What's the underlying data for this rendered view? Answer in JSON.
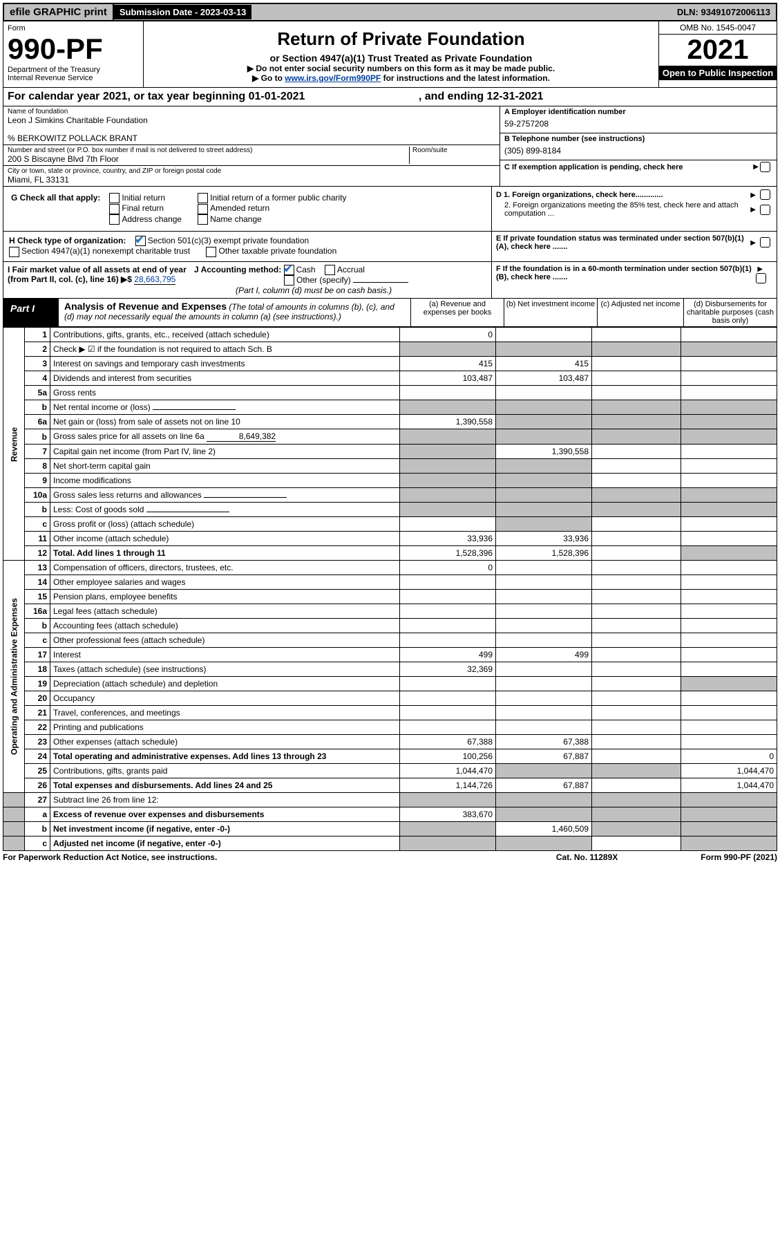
{
  "topbar": {
    "efile": "efile GRAPHIC print",
    "submission_label": "Submission Date - 2023-03-13",
    "dln": "DLN: 93491072006113"
  },
  "header": {
    "form_label": "Form",
    "form_no": "990-PF",
    "dept": "Department of the Treasury",
    "irs": "Internal Revenue Service",
    "title": "Return of Private Foundation",
    "subtitle": "or Section 4947(a)(1) Trust Treated as Private Foundation",
    "note1": "▶ Do not enter social security numbers on this form as it may be made public.",
    "note2_prefix": "▶ Go to ",
    "note2_link": "www.irs.gov/Form990PF",
    "note2_suffix": " for instructions and the latest information.",
    "omb": "OMB No. 1545-0047",
    "year": "2021",
    "open": "Open to Public Inspection"
  },
  "calyear": {
    "text": "For calendar year 2021, or tax year beginning 01-01-2021",
    "mid": ", and ending 12-31-2021"
  },
  "id": {
    "name_label": "Name of foundation",
    "name": "Leon J Simkins Charitable Foundation",
    "care_of": "% BERKOWITZ POLLACK BRANT",
    "addr_label": "Number and street (or P.O. box number if mail is not delivered to street address)",
    "addr": "200 S Biscayne Blvd 7th Floor",
    "room_label": "Room/suite",
    "city_label": "City or town, state or province, country, and ZIP or foreign postal code",
    "city": "Miami, FL  33131",
    "a_label": "A Employer identification number",
    "a_val": "59-2757208",
    "b_label": "B Telephone number (see instructions)",
    "b_val": "(305) 899-8184",
    "c_label": "C If exemption application is pending, check here"
  },
  "g": {
    "label": "G Check all that apply:",
    "opts": [
      "Initial return",
      "Final return",
      "Address change",
      "Initial return of a former public charity",
      "Amended return",
      "Name change"
    ]
  },
  "d": {
    "d1": "D 1. Foreign organizations, check here.............",
    "d2": "2. Foreign organizations meeting the 85% test, check here and attach computation ..."
  },
  "h": {
    "label": "H Check type of organization:",
    "opt1": "Section 501(c)(3) exempt private foundation",
    "opt2": "Section 4947(a)(1) nonexempt charitable trust",
    "opt3": "Other taxable private foundation"
  },
  "e": "E  If private foundation status was terminated under section 507(b)(1)(A), check here .......",
  "i": {
    "label": "I Fair market value of all assets at end of year (from Part II, col. (c), line 16) ▶$",
    "val": "28,663,795"
  },
  "j": {
    "label": "J Accounting method:",
    "cash": "Cash",
    "accrual": "Accrual",
    "other": "Other (specify)",
    "note": "(Part I, column (d) must be on cash basis.)"
  },
  "f": "F  If the foundation is in a 60-month termination under section 507(b)(1)(B), check here .......",
  "part1": {
    "tag": "Part I",
    "title": "Analysis of Revenue and Expenses",
    "desc": " (The total of amounts in columns (b), (c), and (d) may not necessarily equal the amounts in column (a) (see instructions).)",
    "cols": {
      "a": "(a)   Revenue and expenses per books",
      "b": "(b)   Net investment income",
      "c": "(c)   Adjusted net income",
      "d": "(d)   Disbursements for charitable purposes (cash basis only)"
    }
  },
  "sides": {
    "rev": "Revenue",
    "exp": "Operating and Administrative Expenses"
  },
  "rows": [
    {
      "n": "1",
      "t": "Contributions, gifts, grants, etc., received (attach schedule)",
      "a": "0",
      "b": "",
      "c": "",
      "d": ""
    },
    {
      "n": "2",
      "t": "Check ▶ ☑ if the foundation is not required to attach Sch. B",
      "a": "",
      "b": "",
      "c": "",
      "d": "",
      "shade_all": true,
      "bold": false
    },
    {
      "n": "3",
      "t": "Interest on savings and temporary cash investments",
      "a": "415",
      "b": "415",
      "c": "",
      "d": ""
    },
    {
      "n": "4",
      "t": "Dividends and interest from securities",
      "a": "103,487",
      "b": "103,487",
      "c": "",
      "d": ""
    },
    {
      "n": "5a",
      "t": "Gross rents",
      "a": "",
      "b": "",
      "c": "",
      "d": ""
    },
    {
      "n": "b",
      "t": "Net rental income or (loss)",
      "a": "",
      "b": "",
      "c": "",
      "d": "",
      "shade_all": true,
      "inline": true
    },
    {
      "n": "6a",
      "t": "Net gain or (loss) from sale of assets not on line 10",
      "a": "1,390,558",
      "b": "",
      "c": "",
      "d": "",
      "shade_bcd": true
    },
    {
      "n": "b",
      "t": "Gross sales price for all assets on line 6a",
      "inline_val": "8,649,382",
      "shade_all": true
    },
    {
      "n": "7",
      "t": "Capital gain net income (from Part IV, line 2)",
      "a": "",
      "b": "1,390,558",
      "c": "",
      "d": "",
      "shade_a": true
    },
    {
      "n": "8",
      "t": "Net short-term capital gain",
      "a": "",
      "b": "",
      "c": "",
      "d": "",
      "shade_ab": true
    },
    {
      "n": "9",
      "t": "Income modifications",
      "a": "",
      "b": "",
      "c": "",
      "d": "",
      "shade_ab": true
    },
    {
      "n": "10a",
      "t": "Gross sales less returns and allowances",
      "inline": true,
      "shade_all": true
    },
    {
      "n": "b",
      "t": "Less: Cost of goods sold",
      "inline": true,
      "shade_all": true
    },
    {
      "n": "c",
      "t": "Gross profit or (loss) (attach schedule)",
      "a": "",
      "b": "",
      "c": "",
      "d": "",
      "shade_b": true
    },
    {
      "n": "11",
      "t": "Other income (attach schedule)",
      "a": "33,936",
      "b": "33,936",
      "c": "",
      "d": ""
    },
    {
      "n": "12",
      "t": "Total. Add lines 1 through 11",
      "a": "1,528,396",
      "b": "1,528,396",
      "c": "",
      "d": "",
      "bold": true,
      "shade_d": true
    }
  ],
  "exp_rows": [
    {
      "n": "13",
      "t": "Compensation of officers, directors, trustees, etc.",
      "a": "0",
      "b": "",
      "c": "",
      "d": ""
    },
    {
      "n": "14",
      "t": "Other employee salaries and wages",
      "a": "",
      "b": "",
      "c": "",
      "d": ""
    },
    {
      "n": "15",
      "t": "Pension plans, employee benefits",
      "a": "",
      "b": "",
      "c": "",
      "d": ""
    },
    {
      "n": "16a",
      "t": "Legal fees (attach schedule)",
      "a": "",
      "b": "",
      "c": "",
      "d": ""
    },
    {
      "n": "b",
      "t": "Accounting fees (attach schedule)",
      "a": "",
      "b": "",
      "c": "",
      "d": ""
    },
    {
      "n": "c",
      "t": "Other professional fees (attach schedule)",
      "a": "",
      "b": "",
      "c": "",
      "d": ""
    },
    {
      "n": "17",
      "t": "Interest",
      "a": "499",
      "b": "499",
      "c": "",
      "d": ""
    },
    {
      "n": "18",
      "t": "Taxes (attach schedule) (see instructions)",
      "a": "32,369",
      "b": "",
      "c": "",
      "d": ""
    },
    {
      "n": "19",
      "t": "Depreciation (attach schedule) and depletion",
      "a": "",
      "b": "",
      "c": "",
      "d": "",
      "shade_d": true
    },
    {
      "n": "20",
      "t": "Occupancy",
      "a": "",
      "b": "",
      "c": "",
      "d": ""
    },
    {
      "n": "21",
      "t": "Travel, conferences, and meetings",
      "a": "",
      "b": "",
      "c": "",
      "d": ""
    },
    {
      "n": "22",
      "t": "Printing and publications",
      "a": "",
      "b": "",
      "c": "",
      "d": ""
    },
    {
      "n": "23",
      "t": "Other expenses (attach schedule)",
      "a": "67,388",
      "b": "67,388",
      "c": "",
      "d": ""
    },
    {
      "n": "24",
      "t": "Total operating and administrative expenses. Add lines 13 through 23",
      "a": "100,256",
      "b": "67,887",
      "c": "",
      "d": "0",
      "bold": true
    },
    {
      "n": "25",
      "t": "Contributions, gifts, grants paid",
      "a": "1,044,470",
      "b": "",
      "c": "",
      "d": "1,044,470",
      "shade_bc": true
    },
    {
      "n": "26",
      "t": "Total expenses and disbursements. Add lines 24 and 25",
      "a": "1,144,726",
      "b": "67,887",
      "c": "",
      "d": "1,044,470",
      "bold": true
    }
  ],
  "bottom_rows": [
    {
      "n": "27",
      "t": "Subtract line 26 from line 12:",
      "shade_all": true
    },
    {
      "n": "a",
      "t": "Excess of revenue over expenses and disbursements",
      "a": "383,670",
      "shade_bcd": true,
      "bold": true
    },
    {
      "n": "b",
      "t": "Net investment income (if negative, enter -0-)",
      "b": "1,460,509",
      "shade_a": true,
      "shade_cd": true,
      "bold": true
    },
    {
      "n": "c",
      "t": "Adjusted net income (if negative, enter -0-)",
      "shade_abd": true,
      "bold": true
    }
  ],
  "footer": {
    "left": "For Paperwork Reduction Act Notice, see instructions.",
    "mid": "Cat. No. 11289X",
    "right": "Form 990-PF (2021)"
  }
}
